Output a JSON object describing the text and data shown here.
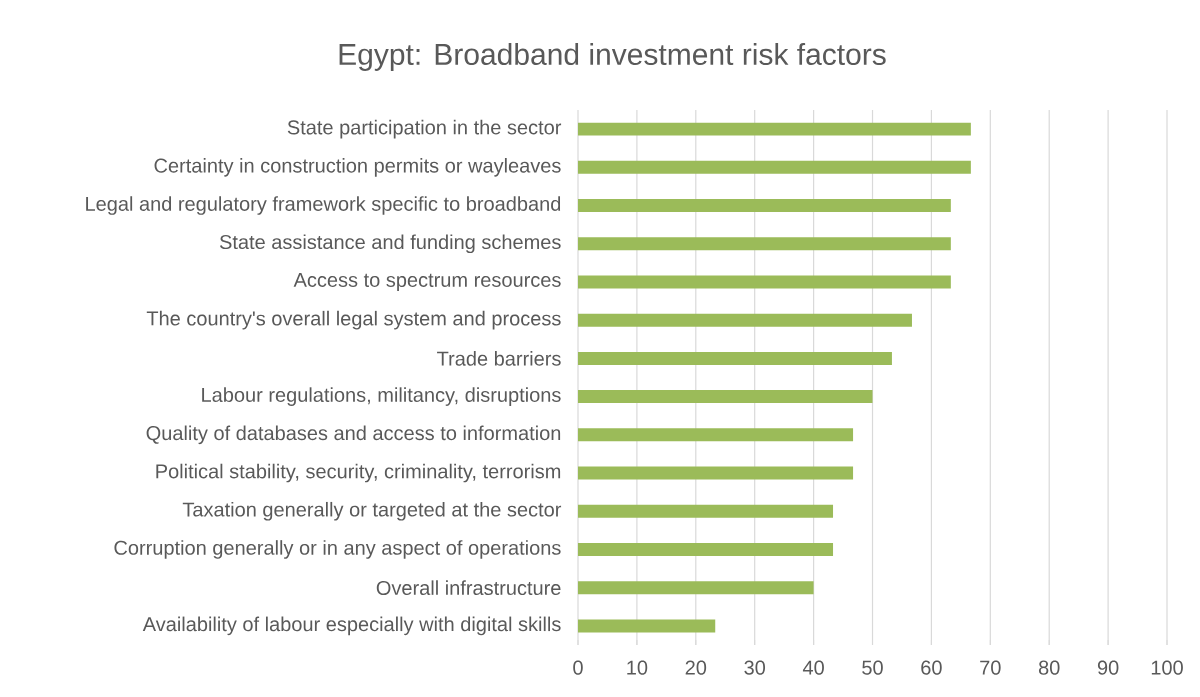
{
  "chart_data": {
    "type": "bar",
    "orientation": "horizontal",
    "title": "Egypt: Broadband investment risk factors",
    "categories": [
      "State participation in the sector",
      "Certainty in construction permits or wayleaves",
      "Legal and regulatory framework specific to broadband",
      "State assistance and funding schemes",
      "Access to spectrum resources",
      "The country's overall legal system and process",
      "Trade barriers",
      "Labour regulations, militancy, disruptions",
      "Quality of databases and access to information",
      "Political stability, security, criminality, terrorism",
      "Taxation generally or targeted at the sector",
      "Corruption generally or in any aspect of operations",
      "Overall infrastructure",
      "Availability of labour especially with digital skills"
    ],
    "values": [
      66.7,
      66.7,
      63.3,
      63.3,
      63.3,
      56.7,
      53.3,
      50,
      46.7,
      46.7,
      43.3,
      43.3,
      40,
      23.3
    ],
    "color": "#9bbb59",
    "xlim": [
      0,
      100
    ],
    "xticks": [
      0,
      10,
      20,
      30,
      40,
      50,
      60,
      70,
      80,
      90,
      100
    ],
    "grid": "x"
  }
}
